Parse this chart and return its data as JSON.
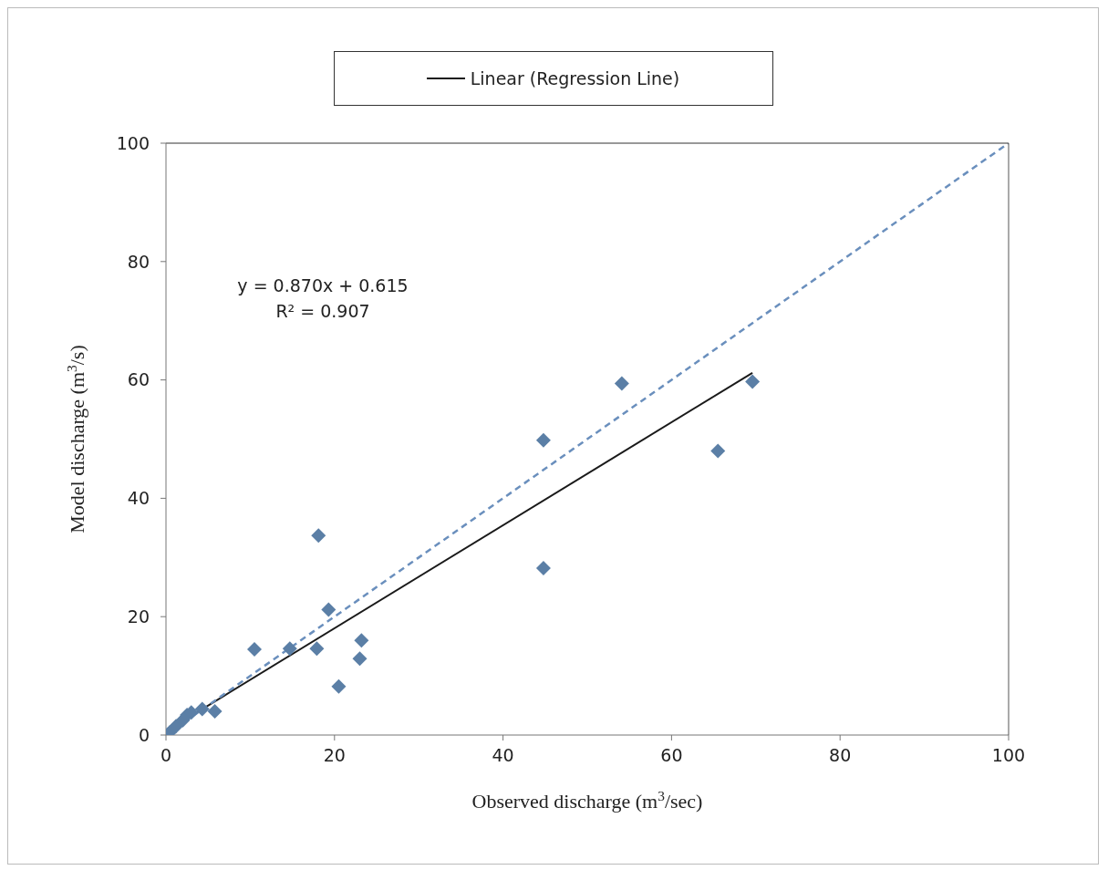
{
  "chart_data": {
    "type": "scatter",
    "xlabel": "Observed discharge (m$^{3}$/sec)",
    "ylabel": "Model discharge (m$^{3}$/s)",
    "xlim": [
      0,
      100
    ],
    "xticks": [
      0,
      20,
      40,
      60,
      80,
      100
    ],
    "ylim": [
      0,
      100
    ],
    "yticks": [
      0,
      20,
      40,
      60,
      80,
      100
    ],
    "grid": false,
    "legend": "top",
    "annotations": [
      "y = 0.870x + 0.615",
      "R² = 0.907"
    ],
    "series": [
      {
        "color": "#5b7fa6",
        "marker": "diamond",
        "x": [
          0.4,
          1.2,
          2.0,
          2.5,
          3.0,
          4.3,
          5.8,
          10.5,
          14.7,
          17.9,
          18.1,
          19.3,
          20.5,
          23.0,
          23.2,
          44.8,
          44.8,
          54.1,
          65.5,
          69.6
        ],
        "values": [
          0.4,
          1.5,
          2.5,
          3.4,
          3.8,
          4.4,
          4.0,
          14.5,
          14.6,
          14.6,
          33.7,
          21.2,
          8.2,
          12.9,
          16.0,
          28.2,
          49.8,
          59.4,
          48.0,
          59.7
        ]
      },
      {
        "type": "line",
        "name": "Linear (Regression Line)",
        "color": "#1a1a1a",
        "marker": "none",
        "line_style": "solid",
        "x": [
          0.2,
          69.6
        ],
        "values": [
          0.8,
          61.2
        ]
      },
      {
        "type": "line",
        "color": "#6a8fbd",
        "marker": "none",
        "line_style": "dashed",
        "x": [
          0,
          100
        ],
        "values": [
          0,
          100
        ]
      }
    ]
  }
}
